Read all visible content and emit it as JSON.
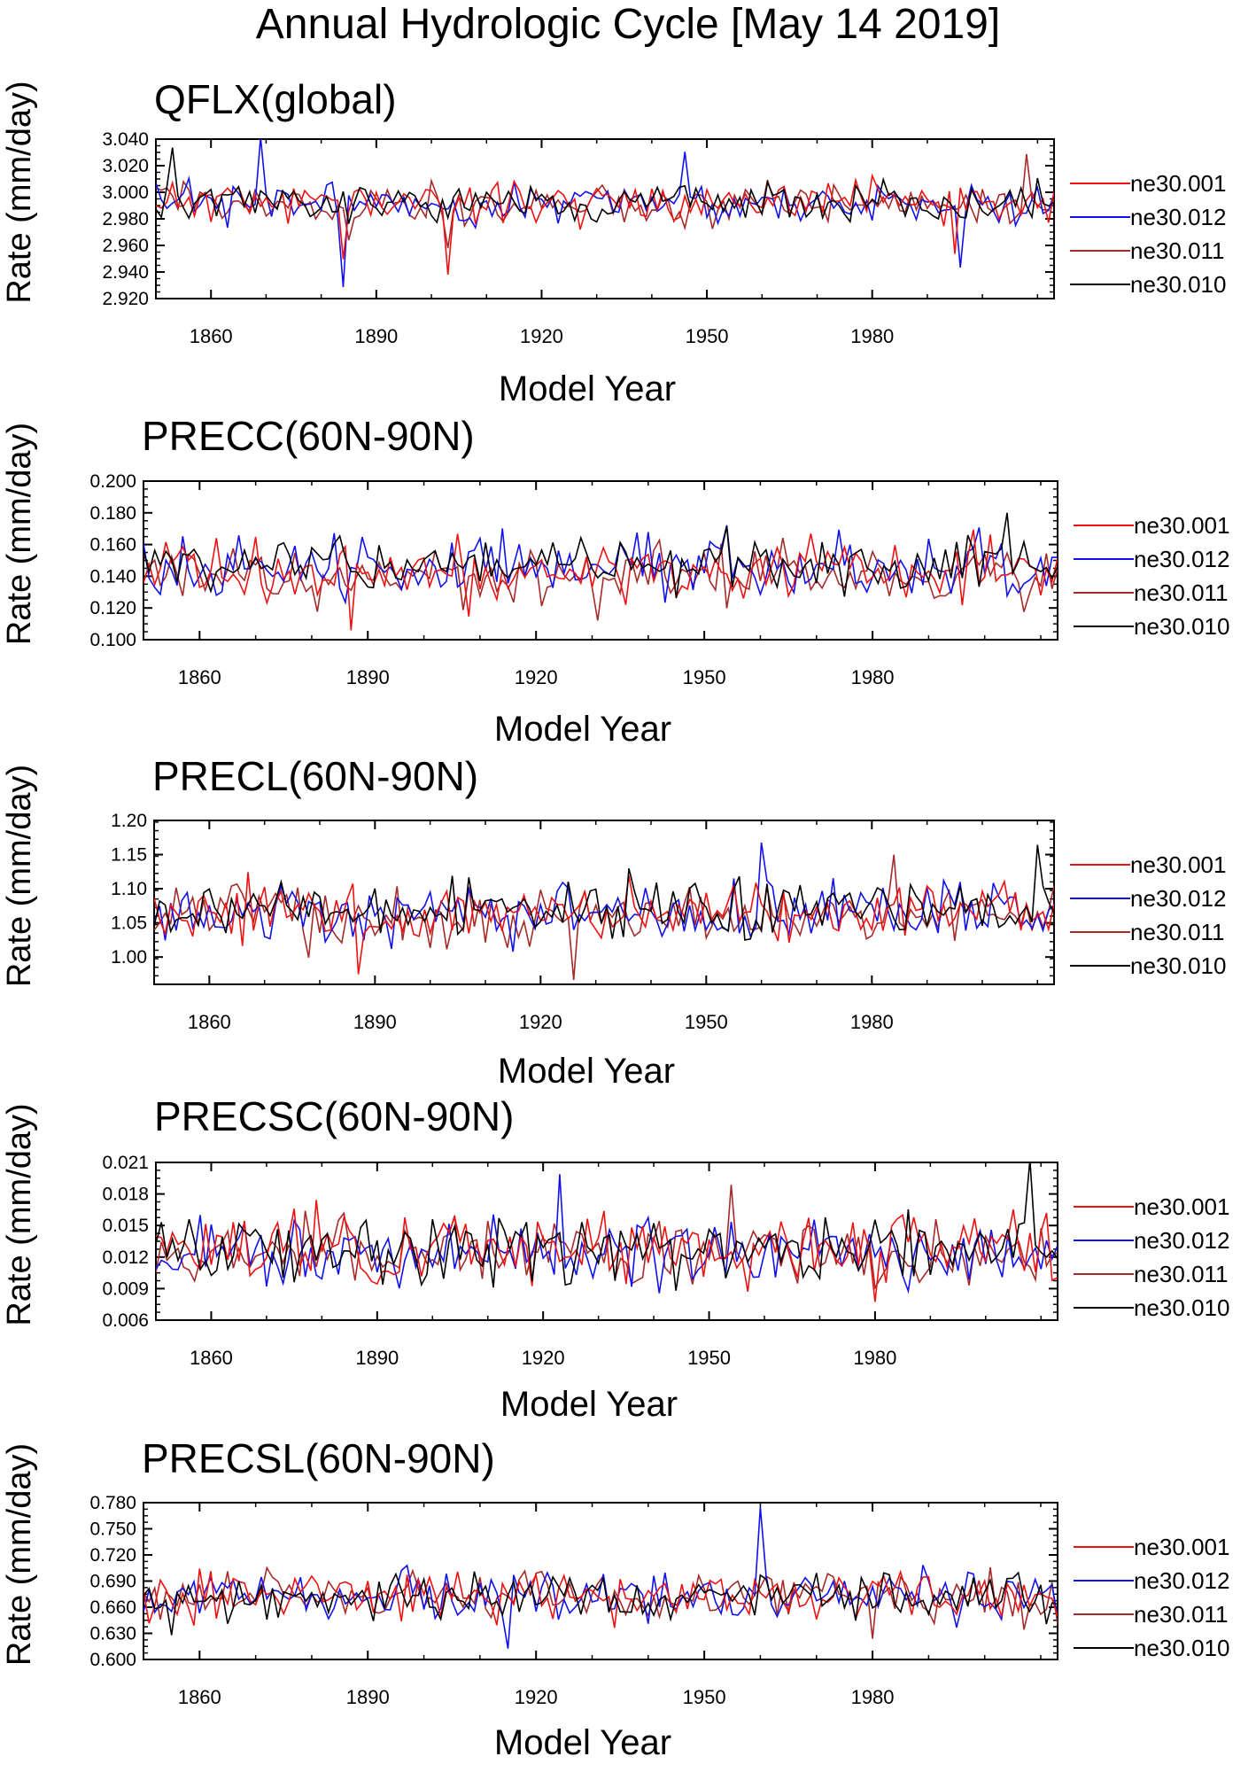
{
  "figure": {
    "title": "Annual Hydrologic Cycle [May 14 2019]"
  },
  "colors": {
    "ne30.001": "#ee1111",
    "ne30.012": "#1111ee",
    "ne30.011": "#a52a2a",
    "ne30.010": "#000000"
  },
  "chart_data": [
    {
      "type": "line",
      "title": "QFLX(global)",
      "xlabel": "Model Year",
      "ylabel": "Rate (mm/day)",
      "xlim": [
        1850,
        2013
      ],
      "ylim": [
        2.92,
        3.04
      ],
      "xticks": [
        "1860",
        "1890",
        "1920",
        "1950",
        "1980"
      ],
      "yticks": [
        "2.920",
        "2.940",
        "2.960",
        "2.980",
        "3.000",
        "3.020",
        "3.040"
      ],
      "series": [
        {
          "name": "ne30.001",
          "base": 2.993,
          "amp": 0.011,
          "dips": [
            [
              1884,
              -0.035
            ],
            [
              1903,
              -0.045
            ],
            [
              1995,
              -0.03
            ]
          ],
          "seed": 11
        },
        {
          "name": "ne30.012",
          "base": 2.992,
          "amp": 0.011,
          "dips": [
            [
              1884,
              -0.048
            ],
            [
              1869,
              0.038
            ],
            [
              1946,
              0.042
            ],
            [
              1996,
              -0.04
            ]
          ],
          "seed": 23
        },
        {
          "name": "ne30.011",
          "base": 2.991,
          "amp": 0.011,
          "dips": [
            [
              1885,
              -0.03
            ],
            [
              1903,
              -0.04
            ],
            [
              2008,
              0.035
            ]
          ],
          "seed": 37
        },
        {
          "name": "ne30.010",
          "base": 2.992,
          "amp": 0.01,
          "dips": [
            [
              1885,
              -0.03
            ],
            [
              1853,
              0.03
            ],
            [
              2010,
              0.03
            ]
          ],
          "seed": 51
        }
      ]
    },
    {
      "type": "line",
      "title": "PRECC(60N-90N)",
      "xlabel": "Model Year",
      "ylabel": "Rate (mm/day)",
      "xlim": [
        1850,
        2013
      ],
      "ylim": [
        0.1,
        0.2
      ],
      "xticks": [
        "1860",
        "1890",
        "1920",
        "1950",
        "1980"
      ],
      "yticks": [
        "0.100",
        "0.120",
        "0.140",
        "0.160",
        "0.180",
        "0.200"
      ],
      "series": [
        {
          "name": "ne30.001",
          "base": 0.143,
          "amp": 0.015,
          "dips": [
            [
              1963,
              0.03
            ],
            [
              1887,
              -0.028
            ]
          ],
          "seed": 12
        },
        {
          "name": "ne30.012",
          "base": 0.145,
          "amp": 0.014,
          "dips": [
            [
              1914,
              0.03
            ],
            [
              1954,
              0.03
            ]
          ],
          "seed": 24
        },
        {
          "name": "ne30.011",
          "base": 0.142,
          "amp": 0.013,
          "dips": [
            [
              1931,
              -0.027
            ]
          ],
          "seed": 38
        },
        {
          "name": "ne30.010",
          "base": 0.147,
          "amp": 0.013,
          "dips": [
            [
              1954,
              0.03
            ],
            [
              2004,
              0.028
            ]
          ],
          "seed": 52
        }
      ]
    },
    {
      "type": "line",
      "title": "PRECL(60N-90N)",
      "xlabel": "Model Year",
      "ylabel": "Rate (mm/day)",
      "xlim": [
        1850,
        2013
      ],
      "ylim": [
        0.96,
        1.2
      ],
      "xticks": [
        "1860",
        "1890",
        "1920",
        "1950",
        "1980"
      ],
      "yticks": [
        "1.00",
        "1.05",
        "1.10",
        "1.15",
        "1.20"
      ],
      "series": [
        {
          "name": "ne30.001",
          "base": 1.065,
          "amp": 0.03,
          "dips": [
            [
              1867,
              0.06
            ],
            [
              1887,
              -0.07
            ]
          ],
          "seed": 13
        },
        {
          "name": "ne30.012",
          "base": 1.065,
          "amp": 0.03,
          "dips": [
            [
              1960,
              0.1
            ],
            [
              1915,
              -0.1
            ]
          ],
          "seed": 25
        },
        {
          "name": "ne30.011",
          "base": 1.06,
          "amp": 0.03,
          "dips": [
            [
              1984,
              0.11
            ],
            [
              1926,
              -0.08
            ]
          ],
          "seed": 39
        },
        {
          "name": "ne30.010",
          "base": 1.07,
          "amp": 0.028,
          "dips": [
            [
              1936,
              0.07
            ],
            [
              2010,
              0.08
            ]
          ],
          "seed": 53
        }
      ]
    },
    {
      "type": "line",
      "title": "PRECSC(60N-90N)",
      "xlabel": "Model Year",
      "ylabel": "Rate (mm/day)",
      "xlim": [
        1850,
        2013
      ],
      "ylim": [
        0.006,
        0.021
      ],
      "xticks": [
        "1860",
        "1890",
        "1920",
        "1950",
        "1980"
      ],
      "yticks": [
        "0.006",
        "0.009",
        "0.012",
        "0.015",
        "0.018",
        "0.021"
      ],
      "series": [
        {
          "name": "ne30.001",
          "base": 0.0128,
          "amp": 0.0025,
          "dips": [
            [
              1919,
              0.005
            ],
            [
              1980,
              -0.005
            ]
          ],
          "seed": 14
        },
        {
          "name": "ne30.012",
          "base": 0.0125,
          "amp": 0.0024,
          "dips": [
            [
              1923,
              0.007
            ]
          ],
          "seed": 26
        },
        {
          "name": "ne30.011",
          "base": 0.0125,
          "amp": 0.0022,
          "dips": [
            [
              1954,
              0.004
            ]
          ],
          "seed": 40
        },
        {
          "name": "ne30.010",
          "base": 0.0126,
          "amp": 0.0023,
          "dips": [
            [
              2008,
              0.008
            ]
          ],
          "seed": 54
        }
      ]
    },
    {
      "type": "line",
      "title": "PRECSL(60N-90N)",
      "xlabel": "Model Year",
      "ylabel": "Rate (mm/day)",
      "xlim": [
        1850,
        2013
      ],
      "ylim": [
        0.6,
        0.78
      ],
      "xticks": [
        "1860",
        "1890",
        "1920",
        "1950",
        "1980"
      ],
      "yticks": [
        "0.600",
        "0.630",
        "0.660",
        "0.690",
        "0.720",
        "0.750",
        "0.780"
      ],
      "series": [
        {
          "name": "ne30.001",
          "base": 0.674,
          "amp": 0.02,
          "dips": [
            [
              1935,
              0.04
            ]
          ],
          "seed": 15
        },
        {
          "name": "ne30.012",
          "base": 0.672,
          "amp": 0.019,
          "dips": [
            [
              1960,
              0.08
            ],
            [
              1915,
              -0.06
            ]
          ],
          "seed": 27
        },
        {
          "name": "ne30.011",
          "base": 0.671,
          "amp": 0.02,
          "dips": [
            [
              1980,
              -0.06
            ],
            [
              1872,
              0.05
            ]
          ],
          "seed": 41
        },
        {
          "name": "ne30.010",
          "base": 0.672,
          "amp": 0.018,
          "dips": [
            [
              1855,
              -0.06
            ]
          ],
          "seed": 55
        }
      ]
    }
  ]
}
